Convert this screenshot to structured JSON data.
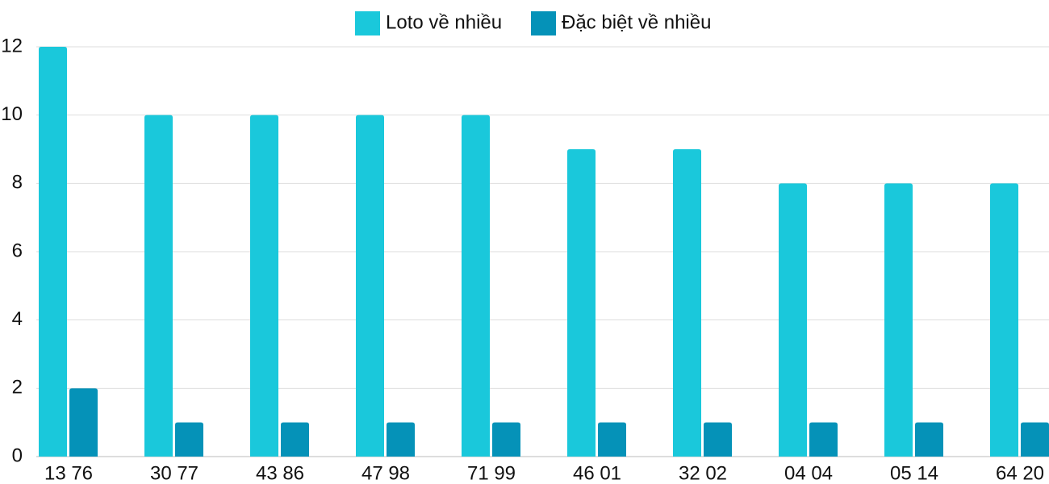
{
  "chart_data": {
    "type": "bar",
    "categories": [
      "13 76",
      "30 77",
      "43 86",
      "47 98",
      "71 99",
      "46 01",
      "32 02",
      "04 04",
      "05 14",
      "64 20"
    ],
    "series": [
      {
        "name": "Loto về nhiều",
        "color": "#1ac8db",
        "values": [
          12,
          10,
          10,
          10,
          10,
          9,
          9,
          8,
          8,
          8
        ]
      },
      {
        "name": "Đặc biệt về nhiều",
        "color": "#0592b8",
        "values": [
          2,
          1,
          1,
          1,
          1,
          1,
          1,
          1,
          1,
          1
        ]
      }
    ],
    "ylim": [
      0,
      12
    ],
    "yticks": [
      0,
      2,
      4,
      6,
      8,
      10,
      12
    ],
    "grid": true,
    "legend": "top"
  }
}
